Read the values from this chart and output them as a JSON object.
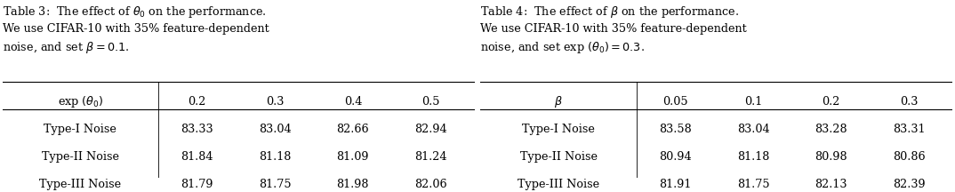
{
  "table3": {
    "caption_line1": "Table 3:  The effect of $\\theta_0$ on the performance.",
    "caption_line2": "We use CIFAR-10 with 35% feature-dependent",
    "caption_line3": "noise, and set $\\beta = 0.1$.",
    "col_header": [
      "exp $(\\theta_0)$",
      "0.2",
      "0.3",
      "0.4",
      "0.5"
    ],
    "rows": [
      [
        "Type-I Noise",
        "83.33",
        "83.04",
        "82.66",
        "82.94"
      ],
      [
        "Type-II Noise",
        "81.84",
        "81.18",
        "81.09",
        "81.24"
      ],
      [
        "Type-III Noise",
        "81.79",
        "81.75",
        "81.98",
        "82.06"
      ]
    ]
  },
  "table4": {
    "caption_line1": "Table 4:  The effect of $\\beta$ on the performance.",
    "caption_line2": "We use CIFAR-10 with 35% feature-dependent",
    "caption_line3": "noise, and set exp $(\\theta_0) = 0.3$.",
    "col_header": [
      "$\\beta$",
      "0.05",
      "0.1",
      "0.2",
      "0.3"
    ],
    "rows": [
      [
        "Type-I Noise",
        "83.58",
        "83.04",
        "83.28",
        "83.31"
      ],
      [
        "Type-II Noise",
        "80.94",
        "81.18",
        "80.98",
        "80.86"
      ],
      [
        "Type-III Noise",
        "81.91",
        "81.75",
        "82.13",
        "82.39"
      ]
    ]
  },
  "bg_color": "#ffffff",
  "text_color": "#000000",
  "font_size": 9.2,
  "caption_font_size": 9.2
}
